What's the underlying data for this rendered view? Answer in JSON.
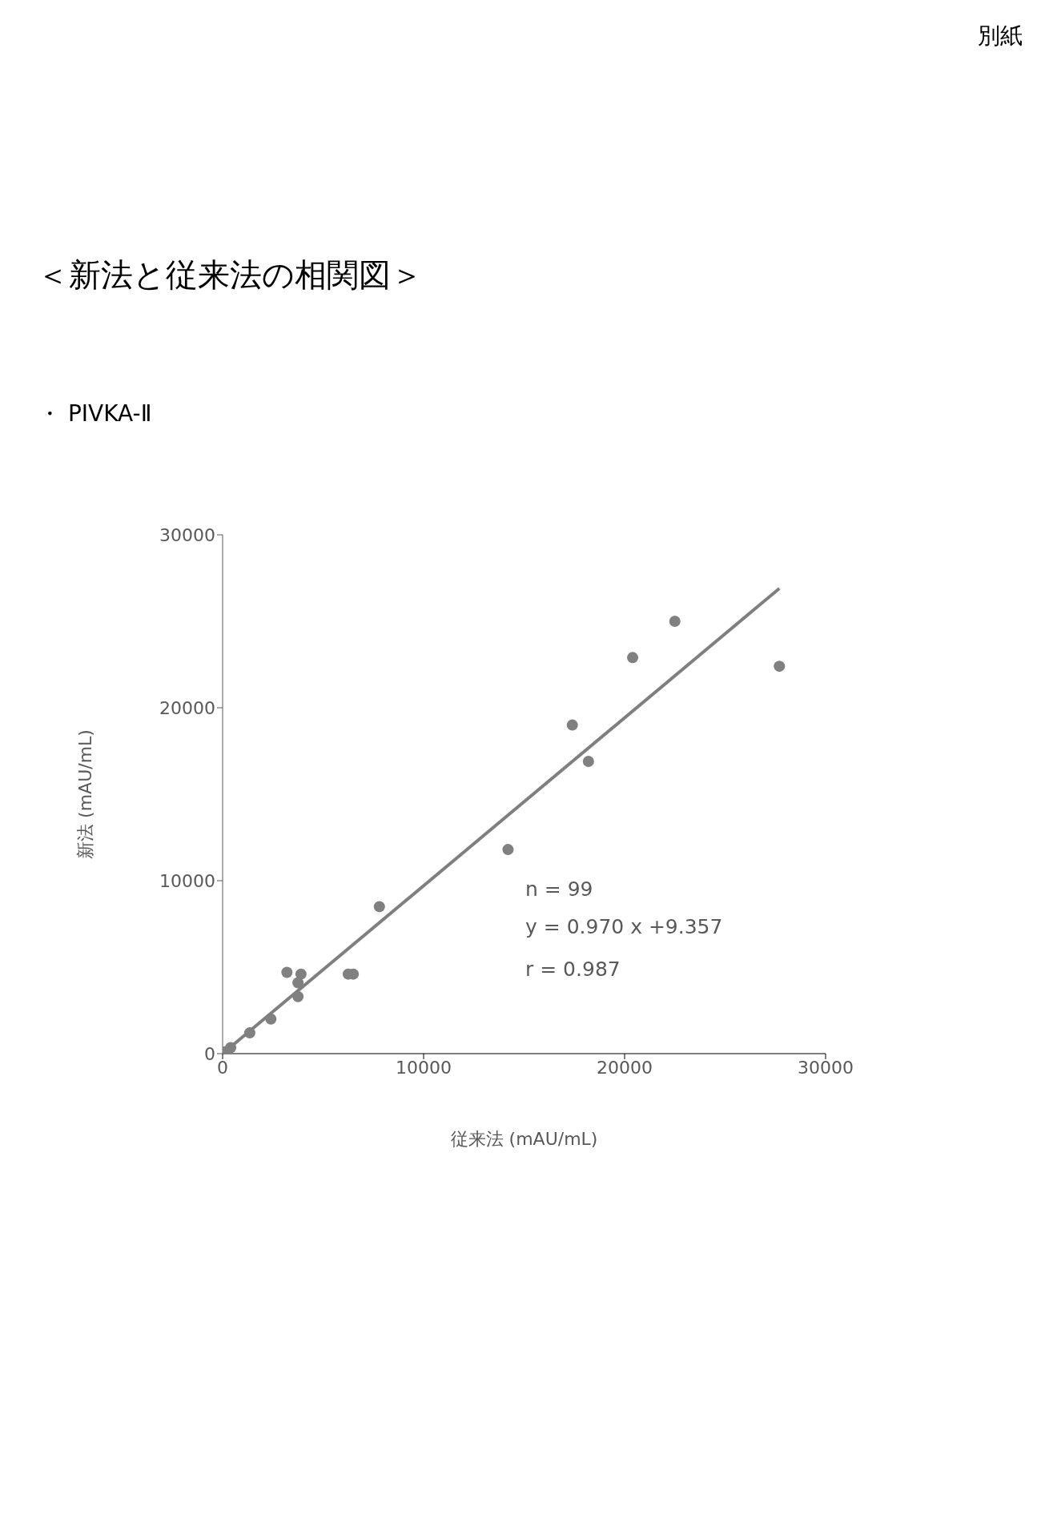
{
  "chart_data": {
    "type": "scatter",
    "title": "＜新法と従来法の相関図＞",
    "subtitle": "・ PIVKA-Ⅱ",
    "xlabel": "従来法 (mAU/mL)",
    "ylabel": "新法 (mAU/mL)",
    "annotations": [
      "別紙",
      "n = 99",
      "y = 0.970 x +9.357",
      "r = 0.987"
    ],
    "xlim": [
      0,
      30000
    ],
    "xticks": [
      0,
      10000,
      20000,
      30000
    ],
    "ylim": [
      0,
      30000
    ],
    "yticks": [
      0,
      10000,
      20000,
      30000
    ],
    "grid": false,
    "legend": false,
    "marker": "circle",
    "series": [
      {
        "color": "#808080",
        "x": [
          27700,
          22500,
          20400,
          17400,
          18200,
          14200,
          7800,
          3200,
          3900,
          3750,
          3750,
          6250,
          6500,
          2400,
          1600,
          1350,
          1000,
          750,
          650,
          400,
          100
        ],
        "values": [
          22400,
          25000,
          22900,
          19000,
          16900,
          11800,
          8500,
          4700,
          4600,
          4100,
          3300,
          4600,
          4600,
          2000,
          null,
          1200,
          null,
          null,
          null,
          350,
          100
        ]
      },
      {
        "type": "line",
        "color": "#7f7f7f",
        "marker": "none",
        "x": [
          0,
          27700
        ],
        "values": [
          0,
          26900
        ]
      }
    ]
  }
}
